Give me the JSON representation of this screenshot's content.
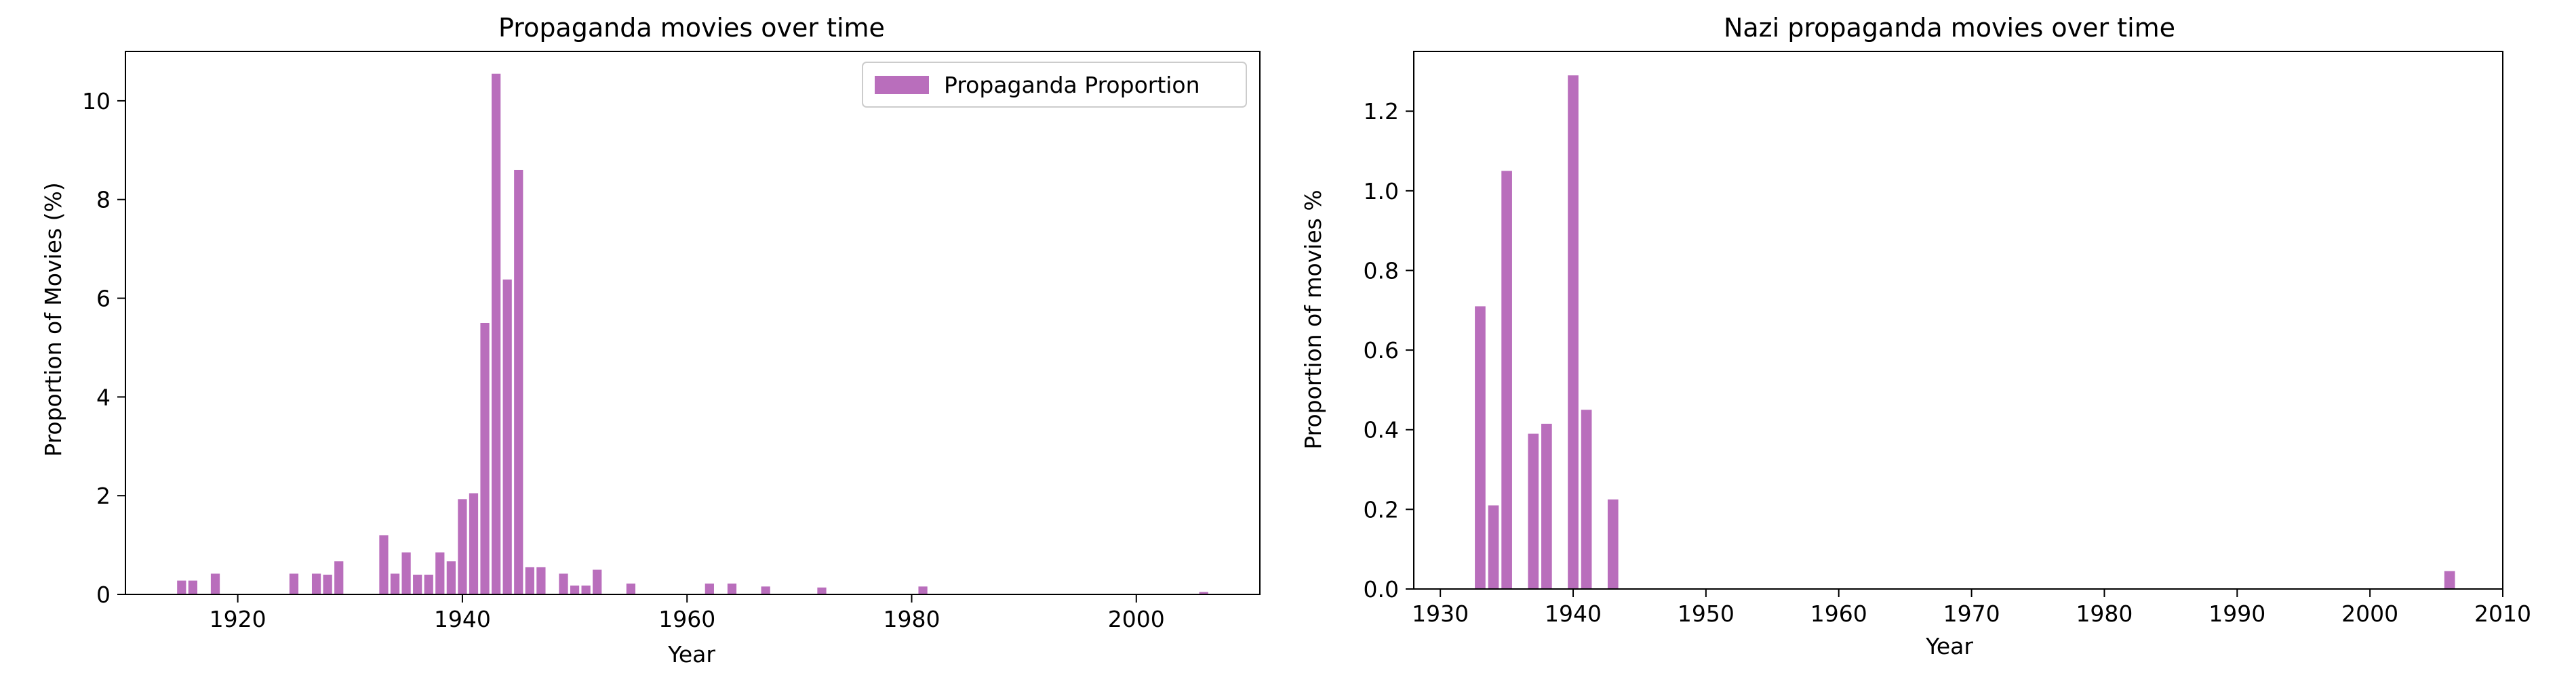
{
  "colors": {
    "bar": "#9b30a0",
    "bar_opacity": 0.7,
    "axis": "#000000",
    "background": "#ffffff"
  },
  "chart_data": [
    {
      "type": "bar",
      "title": "Propaganda movies over time",
      "xlabel": "Year",
      "ylabel": "Proportion of Movies (%)",
      "xlim": [
        1910,
        2011
      ],
      "ylim": [
        0,
        11
      ],
      "xticks": [
        1920,
        1940,
        1960,
        1980,
        2000
      ],
      "yticks": [
        0,
        2,
        4,
        6,
        8,
        10
      ],
      "grid": false,
      "legend": {
        "placement": "top-right",
        "entries": [
          "Propaganda Proportion"
        ]
      },
      "series": [
        {
          "name": "Propaganda Proportion",
          "x": [
            1915,
            1916,
            1918,
            1925,
            1927,
            1928,
            1929,
            1933,
            1934,
            1935,
            1936,
            1937,
            1938,
            1939,
            1940,
            1941,
            1942,
            1943,
            1944,
            1945,
            1946,
            1947,
            1949,
            1950,
            1951,
            1952,
            1955,
            1962,
            1964,
            1967,
            1972,
            1981,
            2006
          ],
          "values": [
            0.28,
            0.28,
            0.42,
            0.42,
            0.42,
            0.4,
            0.67,
            1.2,
            0.42,
            0.85,
            0.4,
            0.4,
            0.85,
            0.67,
            1.93,
            2.05,
            5.5,
            10.55,
            6.38,
            8.6,
            0.55,
            0.55,
            0.42,
            0.18,
            0.18,
            0.5,
            0.22,
            0.22,
            0.22,
            0.16,
            0.14,
            0.16,
            0.05
          ]
        }
      ]
    },
    {
      "type": "bar",
      "title": "Nazi propaganda movies over time",
      "xlabel": "Year",
      "ylabel": "Proportion of movies %",
      "xlim": [
        1928,
        2010
      ],
      "ylim": [
        0,
        1.35
      ],
      "xticks": [
        1930,
        1940,
        1950,
        1960,
        1970,
        1980,
        1990,
        2000,
        2010
      ],
      "yticks": [
        0.0,
        0.2,
        0.4,
        0.6,
        0.8,
        1.0,
        1.2
      ],
      "ytick_labels": [
        "0.0",
        "0.2",
        "0.4",
        "0.6",
        "0.8",
        "1.0",
        "1.2"
      ],
      "grid": false,
      "series": [
        {
          "x": [
            1933,
            1934,
            1935,
            1937,
            1938,
            1940,
            1941,
            1943,
            2006
          ],
          "values": [
            0.71,
            0.21,
            1.05,
            0.39,
            0.415,
            1.29,
            0.45,
            0.225,
            0.045
          ]
        }
      ]
    }
  ]
}
